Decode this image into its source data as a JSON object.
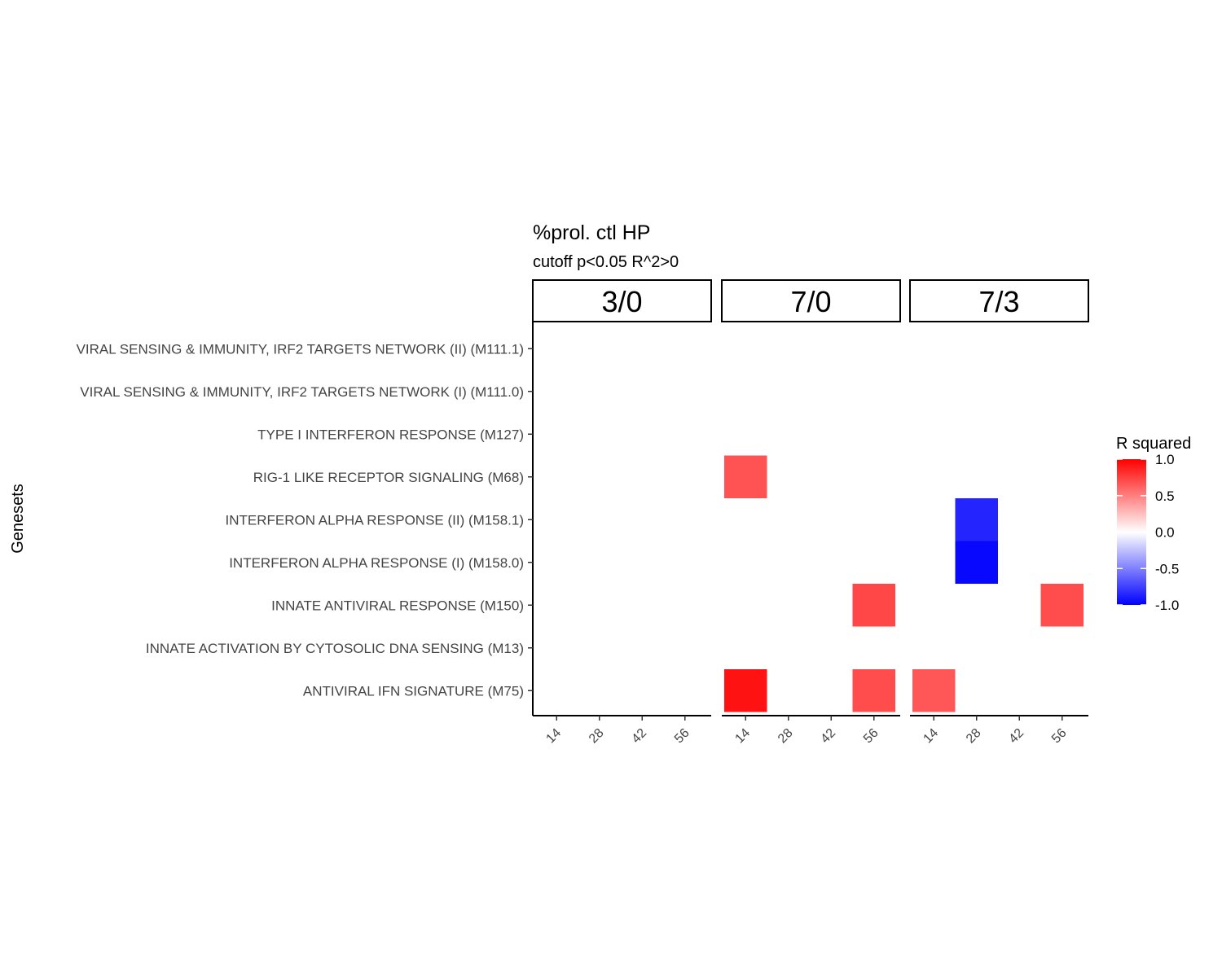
{
  "chart_data": {
    "type": "heatmap",
    "title": "%prol. ctl HP",
    "subtitle": "cutoff p<0.05 R^2>0",
    "ylabel": "Genesets",
    "xlabel": "",
    "panels": [
      "3/0",
      "7/0",
      "7/3"
    ],
    "x_ticks": [
      "14",
      "28",
      "42",
      "56"
    ],
    "rows": [
      "VIRAL SENSING & IMMUNITY,  IRF2 TARGETS NETWORK (II) (M111.1)",
      "VIRAL SENSING & IMMUNITY,  IRF2 TARGETS NETWORK (I) (M111.0)",
      "TYPE I INTERFERON RESPONSE (M127)",
      "RIG-1 LIKE RECEPTOR SIGNALING (M68)",
      "INTERFERON ALPHA RESPONSE (II) (M158.1)",
      "INTERFERON ALPHA RESPONSE (I) (M158.0)",
      "INNATE ANTIVIRAL RESPONSE (M150)",
      "INNATE ACTIVATION BY CYTOSOLIC DNA SENSING (M13)",
      "ANTIVIRAL IFN SIGNATURE (M75)"
    ],
    "cells": [
      {
        "panel": "7/0",
        "x": "14",
        "row": "RIG-1 LIKE RECEPTOR SIGNALING (M68)",
        "value": 0.68
      },
      {
        "panel": "7/0",
        "x": "14",
        "row": "ANTIVIRAL IFN SIGNATURE (M75)",
        "value": 0.93
      },
      {
        "panel": "7/0",
        "x": "56",
        "row": "INNATE ANTIVIRAL RESPONSE (M150)",
        "value": 0.72
      },
      {
        "panel": "7/0",
        "x": "56",
        "row": "ANTIVIRAL IFN SIGNATURE (M75)",
        "value": 0.7
      },
      {
        "panel": "7/3",
        "x": "14",
        "row": "ANTIVIRAL IFN SIGNATURE (M75)",
        "value": 0.66
      },
      {
        "panel": "7/3",
        "x": "28",
        "row": "INTERFERON ALPHA RESPONSE (II) (M158.1)",
        "value": -0.86
      },
      {
        "panel": "7/3",
        "x": "28",
        "row": "INTERFERON ALPHA RESPONSE (I) (M158.0)",
        "value": -0.97
      },
      {
        "panel": "7/3",
        "x": "56",
        "row": "INNATE ANTIVIRAL RESPONSE (M150)",
        "value": 0.7
      }
    ],
    "legend": {
      "title": "R squared",
      "ticks": [
        "1.0",
        "0.5",
        "0.0",
        "-0.5",
        "-1.0"
      ],
      "range": [
        -1,
        1
      ],
      "colors": {
        "low": "#0000ff",
        "mid": "#ffffff",
        "high": "#ff0000"
      },
      "placement": "right"
    }
  }
}
